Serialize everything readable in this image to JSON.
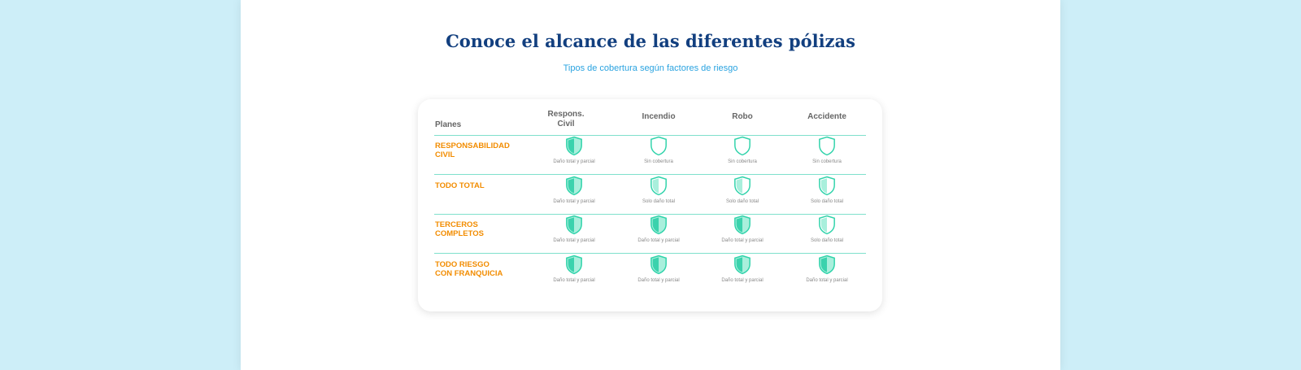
{
  "header": {
    "title": "Conoce el alcance de las diferentes pólizas",
    "subtitle": "Tipos de cobertura según factores de riesgo"
  },
  "table": {
    "headers": [
      "Planes",
      "Respons. Civil",
      "Incendio",
      "Robo",
      "Accidente"
    ],
    "rows": [
      {
        "plan": "RESPONSABILIDAD CIVIL",
        "cells": [
          "Daño total y parcial",
          "Sin cobertura",
          "Sin cobertura",
          "Sin cobertura"
        ]
      },
      {
        "plan": "TODO TOTAL",
        "cells": [
          "Daño total y parcial",
          "Solo daño total",
          "Solo daño total",
          "Solo daño total"
        ]
      },
      {
        "plan": "TERCEROS COMPLETOS",
        "cells": [
          "Daño total y parcial",
          "Daño total y parcial",
          "Daño total y parcial",
          "Solo daño total"
        ]
      },
      {
        "plan": "TODO RIESGO CON FRANQUICIA",
        "cells": [
          "Daño total y parcial",
          "Daño total y parcial",
          "Daño total y parcial",
          "Daño total y parcial"
        ]
      }
    ]
  }
}
